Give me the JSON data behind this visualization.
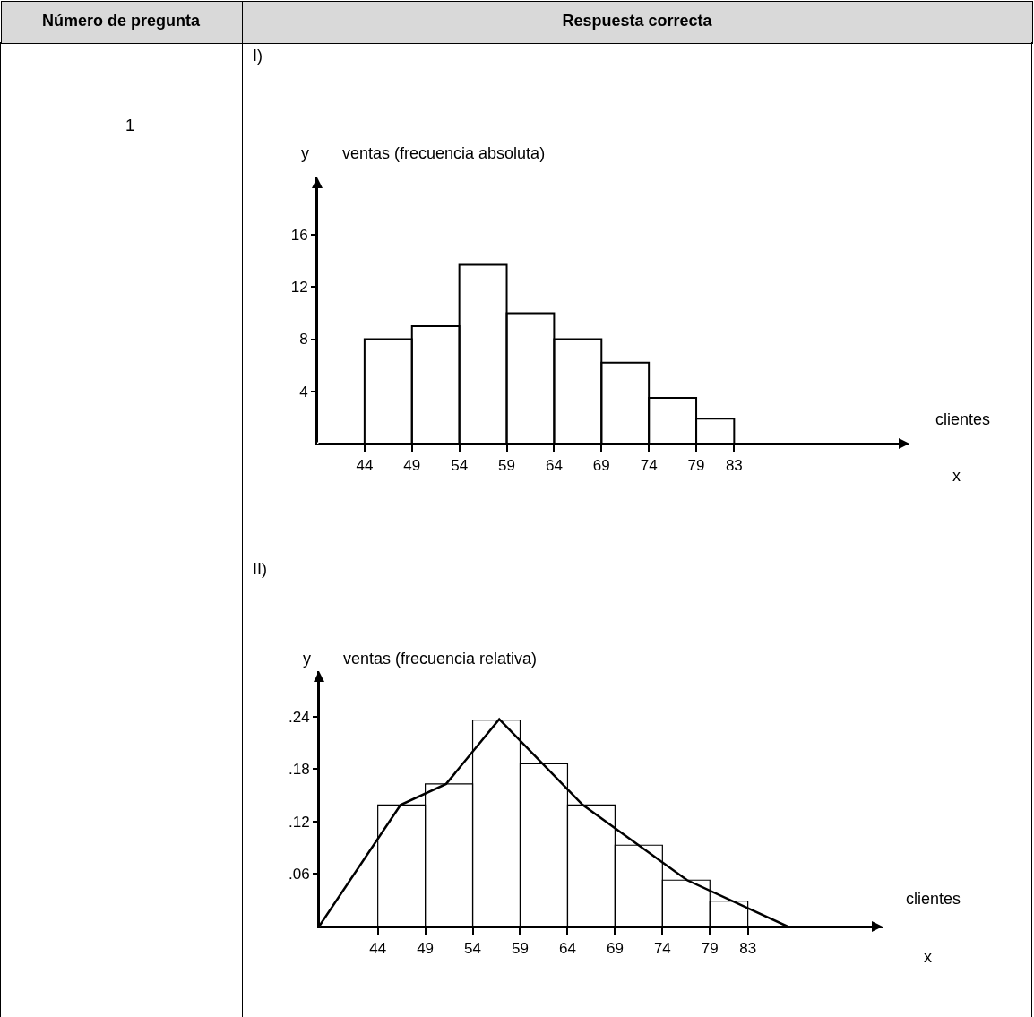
{
  "chart_data": [
    {
      "type": "other",
      "annotations": [
        "Número de pregunta",
        "Respuesta correcta",
        "1",
        "I)",
        "II)"
      ]
    },
    {
      "type": "histogram",
      "title": "ventas (frecuencia absoluta)",
      "ylabel": "y",
      "xlabel": "clientes",
      "annotations": [
        "x"
      ],
      "bins": [
        44,
        49,
        54,
        59,
        64,
        69,
        74,
        79,
        83
      ],
      "values": [
        8,
        9,
        13.7,
        10,
        8,
        6.2,
        3.5,
        1.9
      ],
      "color": "#000000",
      "xlim": [
        39,
        101.5
      ],
      "xticks": [
        44,
        49,
        54,
        59,
        64,
        69,
        74,
        79,
        83
      ],
      "ylim": [
        0,
        20.4
      ],
      "yticks": [
        4,
        8,
        12,
        16
      ],
      "grid": false
    },
    {
      "type": "histogram",
      "title": "ventas (frecuencia relativa)",
      "ylabel": "y",
      "xlabel": "clientes",
      "annotations": [
        "x"
      ],
      "bins": [
        44,
        49,
        54,
        59,
        64,
        69,
        74,
        79,
        83
      ],
      "series": [
        {
          "type": "histogram",
          "color": "#000000",
          "values": [
            0.139,
            0.163,
            0.236,
            0.186,
            0.139,
            0.093,
            0.053,
            0.029
          ]
        },
        {
          "type": "line",
          "color": "#000000",
          "x": [
            37.8,
            46.4,
            51.2,
            56.8,
            65.6,
            76.6,
            87.2
          ],
          "values": [
            0,
            0.139,
            0.163,
            0.237,
            0.139,
            0.053,
            0
          ]
        }
      ],
      "xlim": [
        37.8,
        97.2
      ],
      "xticks": [
        44,
        49,
        54,
        59,
        64,
        69,
        74,
        79,
        83
      ],
      "ylim": [
        0,
        0.292
      ],
      "yticks": [
        {
          "value": 0.06,
          "label": ".06"
        },
        {
          "value": 0.12,
          "label": ".12"
        },
        {
          "value": 0.18,
          "label": ".18"
        },
        {
          "value": 0.24,
          "label": ".24"
        }
      ],
      "grid": false
    }
  ]
}
